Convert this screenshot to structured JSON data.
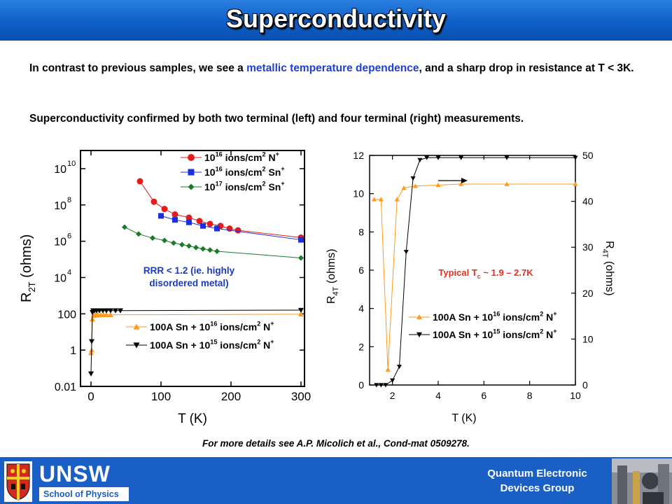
{
  "slide": {
    "title": "Superconductivity",
    "para1_pre": "In contrast to previous samples, we see a ",
    "para1_blue": "metallic temperature dependence",
    "para1_post": ", and a sharp drop in resistance at T < 3K.",
    "para2": "Superconductivity confirmed by both two terminal (left) and four terminal (right) measurements.",
    "caption": "For more details see A.P. Micolich et al., Cond-mat 0509278."
  },
  "footer": {
    "unsw": "UNSW",
    "school": "School of Physics",
    "group_line1": "Quantum Electronic",
    "group_line2": "Devices Group"
  },
  "colors": {
    "title_bar": "#0f5fc8",
    "footer": "#1a5fc6",
    "red": "#e31c1c",
    "blue": "#1b2fe0",
    "green": "#1a7a2a",
    "orange": "#ff9a1a",
    "black": "#000000",
    "annotation_blue": "#1a3ab8",
    "annotation_red": "#e8301c"
  },
  "chart_data": [
    {
      "type": "scatter",
      "panel": "left",
      "xlabel": "T (K)",
      "ylabel": "R",
      "ylabel_sub": "2T",
      "ylabel_unit": "(ohms)",
      "xlim": [
        -15,
        305
      ],
      "ylim_log10": [
        -2,
        11
      ],
      "log_y": true,
      "x_ticks": [
        0,
        100,
        200,
        300
      ],
      "y_ticks": [
        {
          "base": "0.01",
          "exp": ""
        },
        {
          "base": "1",
          "exp": ""
        },
        {
          "base": "100",
          "exp": ""
        },
        {
          "base": "10",
          "exp": "4"
        },
        {
          "base": "10",
          "exp": "6"
        },
        {
          "base": "10",
          "exp": "8"
        },
        {
          "base": "10",
          "exp": "10"
        }
      ],
      "annotation": [
        "RRR < 1.2 (ie. highly",
        "disordered metal)"
      ],
      "legend_top": [
        {
          "pre": "10",
          "exp": "16",
          "post": " ions/cm",
          "exp2": "2",
          "ion": " N",
          "charge": "+"
        },
        {
          "pre": "10",
          "exp": "16",
          "post": " ions/cm",
          "exp2": "2",
          "ion": " Sn",
          "charge": "+"
        },
        {
          "pre": "10",
          "exp": "17",
          "post": " ions/cm",
          "exp2": "2",
          "ion": " Sn",
          "charge": "+"
        }
      ],
      "legend_bottom": [
        {
          "pre": "100A Sn + 10",
          "exp": "16",
          "post": " ions/cm",
          "exp2": "2",
          "ion": " N",
          "charge": "+"
        },
        {
          "pre": "100A Sn + 10",
          "exp": "15",
          "post": " ions/cm",
          "exp2": "2",
          "ion": " N",
          "charge": "+"
        }
      ],
      "series": [
        {
          "marker": "circle",
          "x": [
            70,
            90,
            105,
            120,
            140,
            155,
            170,
            185,
            198,
            210,
            300
          ],
          "y": [
            2000000000.0,
            150000000.0,
            60000000.0,
            30000000.0,
            20000000.0,
            13000000.0,
            9000000.0,
            7000000.0,
            5000000.0,
            4000000.0,
            1600000.0
          ]
        },
        {
          "marker": "square",
          "x": [
            100,
            120,
            140,
            160,
            180,
            300
          ],
          "y": [
            25000000.0,
            15000000.0,
            11000000.0,
            7000000.0,
            5000000.0,
            1200000.0
          ]
        },
        {
          "marker": "diamond",
          "x": [
            48,
            68,
            88,
            105,
            118,
            130,
            140,
            150,
            160,
            170,
            180,
            300
          ],
          "y": [
            6000000.0,
            2500000.0,
            1500000.0,
            1100000.0,
            800000.0,
            650000.0,
            550000.0,
            450000.0,
            380000.0,
            330000.0,
            280000.0,
            120000.0
          ]
        },
        {
          "marker": "triangle-up",
          "x": [
            0,
            1,
            2,
            4,
            6,
            8,
            10,
            14,
            18,
            22,
            28,
            300
          ],
          "y": [
            0.7,
            1,
            50,
            80,
            85,
            85,
            87,
            87,
            88,
            88,
            88,
            95
          ]
        },
        {
          "marker": "triangle-down",
          "x": [
            0,
            1,
            2,
            3,
            5,
            8,
            12,
            17,
            22,
            28,
            35,
            42,
            300
          ],
          "y": [
            0.05,
            3,
            120,
            150,
            150,
            150,
            150,
            150,
            150,
            150,
            150,
            150,
            160
          ]
        }
      ]
    },
    {
      "type": "line",
      "panel": "right",
      "xlabel": "T (K)",
      "ylabel_left": "R",
      "ylabel_left_sub": "4T",
      "ylabel_left_unit": "(ohms)",
      "ylabel_right": "R",
      "ylabel_right_sub": "4T",
      "ylabel_right_unit": "(ohms)",
      "xlim": [
        1,
        10
      ],
      "ylim_left": [
        0,
        12
      ],
      "ylim_right": [
        0,
        50
      ],
      "x_ticks": [
        2,
        4,
        6,
        8,
        10
      ],
      "y_ticks_left": [
        0,
        2,
        4,
        6,
        8,
        10,
        12
      ],
      "y_ticks_right": [
        0,
        10,
        20,
        30,
        40,
        50
      ],
      "annotation": {
        "pre": "Typical T",
        "sub": "c",
        "post": " ~ 1.9 – 2.7K"
      },
      "legend": [
        {
          "pre": "100A Sn + 10",
          "exp": "16",
          "post": " ions/cm",
          "exp2": "2",
          "ion": " N",
          "charge": "+"
        },
        {
          "pre": "100A Sn + 10",
          "exp": "15",
          "post": " ions/cm",
          "exp2": "2",
          "ion": " N",
          "charge": "+"
        }
      ],
      "series": [
        {
          "marker": "triangle-up",
          "axis": "left",
          "x": [
            1.2,
            1.5,
            1.8,
            2.2,
            2.5,
            3.0,
            4.0,
            5.0,
            7.0,
            10.0
          ],
          "y": [
            9.7,
            9.7,
            0.8,
            9.7,
            10.3,
            10.4,
            10.45,
            10.5,
            10.5,
            10.5
          ]
        },
        {
          "marker": "triangle-down",
          "axis": "right",
          "x": [
            1.3,
            1.5,
            1.7,
            2.0,
            2.3,
            2.6,
            2.9,
            3.2,
            3.5,
            4.0,
            5.0,
            7.0,
            10.0
          ],
          "y": [
            0,
            0,
            0,
            1,
            4,
            29,
            45,
            49,
            49.5,
            49.5,
            49.5,
            49.5,
            49.5
          ]
        }
      ]
    }
  ]
}
